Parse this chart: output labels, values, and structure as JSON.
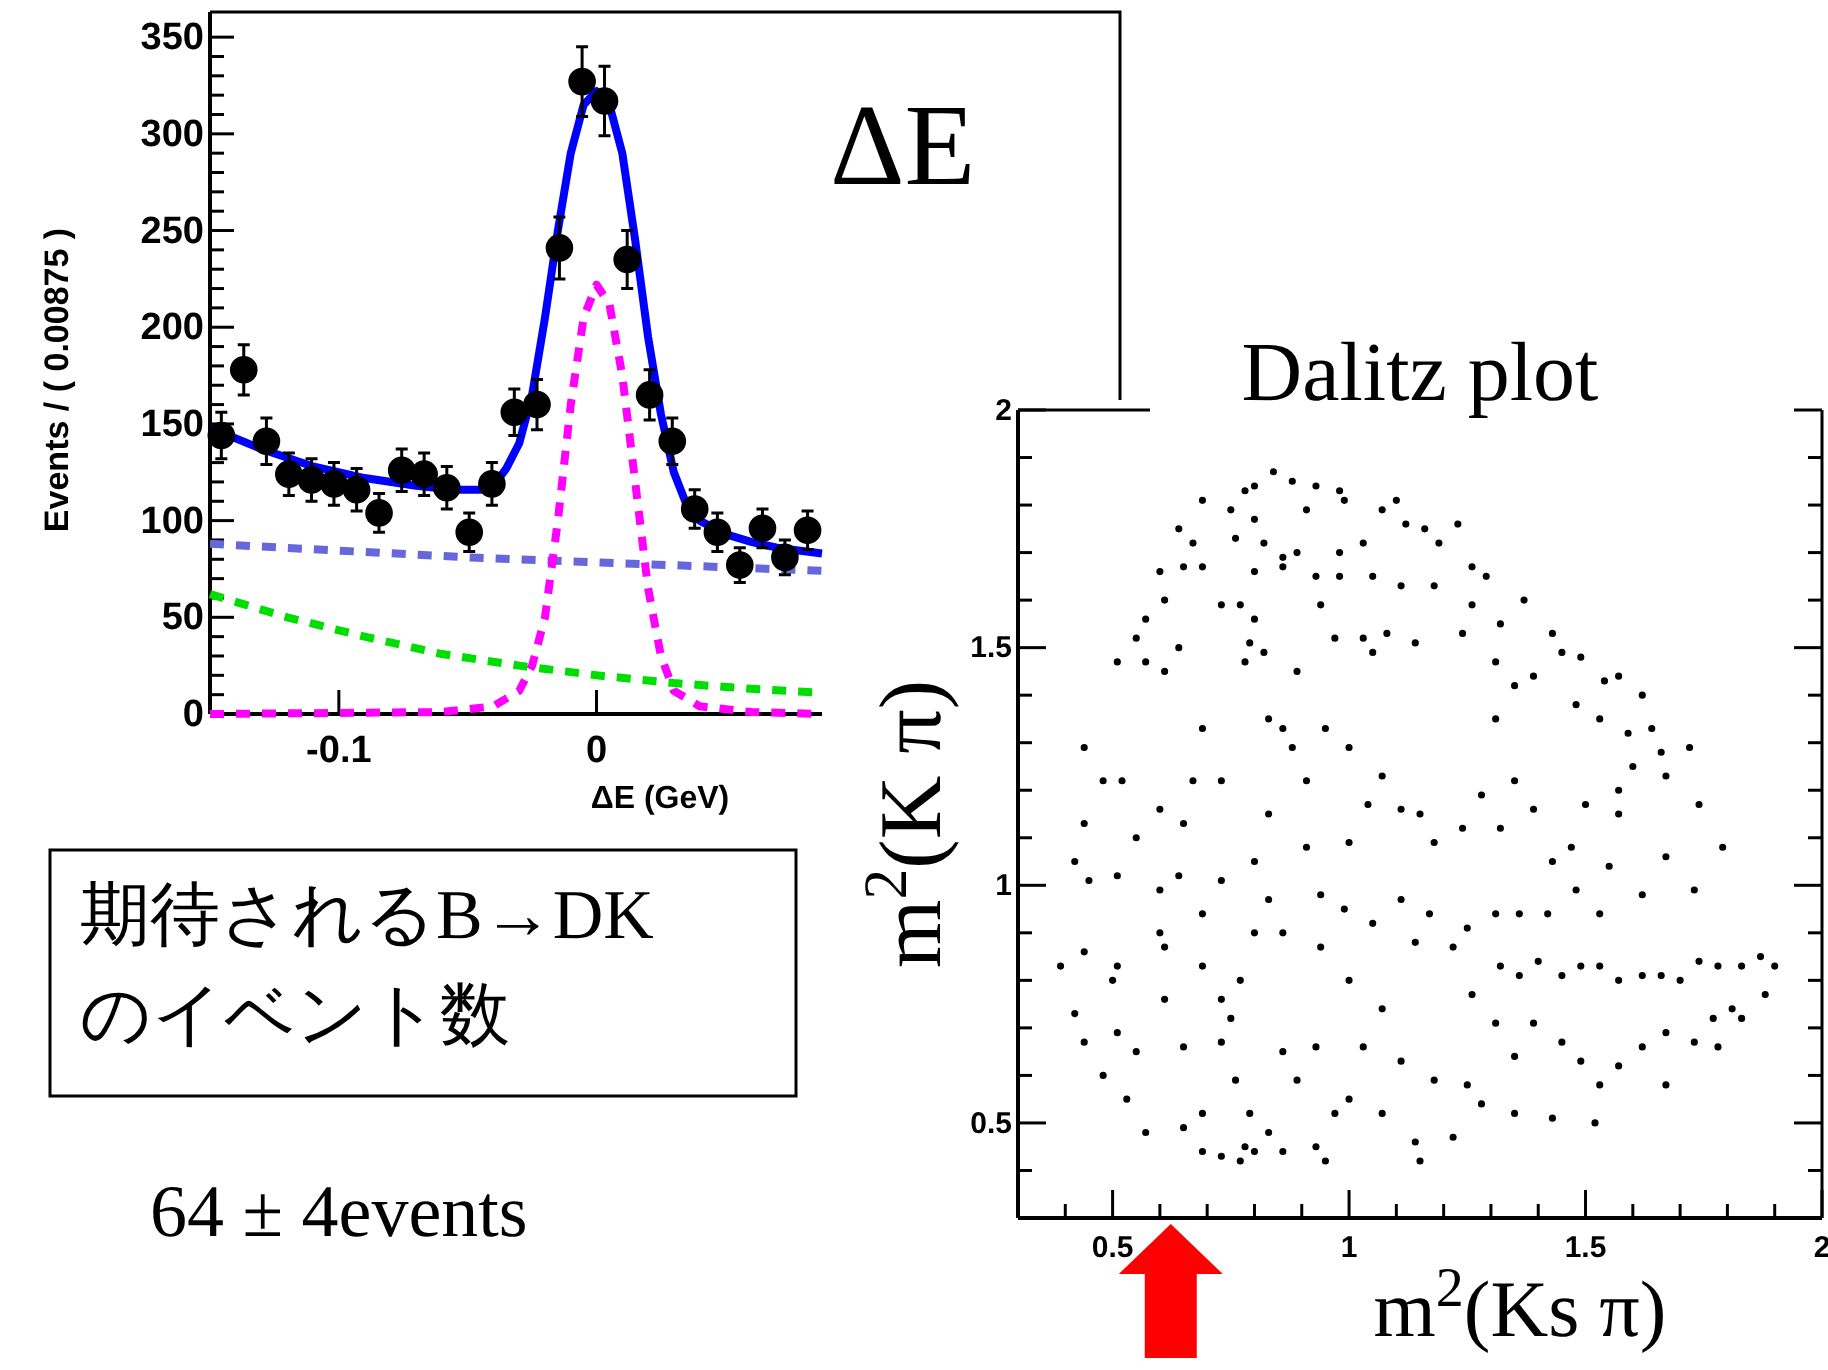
{
  "chart_data": [
    {
      "type": "scatter",
      "xlabel": "ΔE (GeV)",
      "ylabel": "Events / ( 0.00875 )",
      "annotations": [
        "ΔE",
        "期待されるB→DKのイベント数",
        "64 ± 4events"
      ],
      "xlim": [
        -0.15,
        0.0875
      ],
      "xticks": [
        -0.1,
        0
      ],
      "ylim": [
        0,
        363
      ],
      "yticks": [
        0,
        {
          "value": 10,
          "label": null
        },
        {
          "value": 20,
          "label": null
        },
        {
          "value": 30,
          "label": null
        },
        {
          "value": 40,
          "label": null
        },
        50,
        {
          "value": 60,
          "label": null
        },
        {
          "value": 70,
          "label": null
        },
        {
          "value": 80,
          "label": null
        },
        {
          "value": 90,
          "label": null
        },
        100,
        {
          "value": 110,
          "label": null
        },
        {
          "value": 120,
          "label": null
        },
        {
          "value": 130,
          "label": null
        },
        {
          "value": 140,
          "label": null
        },
        150,
        {
          "value": 160,
          "label": null
        },
        {
          "value": 170,
          "label": null
        },
        {
          "value": 180,
          "label": null
        },
        {
          "value": 190,
          "label": null
        },
        200,
        {
          "value": 210,
          "label": null
        },
        {
          "value": 220,
          "label": null
        },
        {
          "value": 230,
          "label": null
        },
        {
          "value": 240,
          "label": null
        },
        250,
        {
          "value": 260,
          "label": null
        },
        {
          "value": 270,
          "label": null
        },
        {
          "value": 280,
          "label": null
        },
        {
          "value": 290,
          "label": null
        },
        300,
        {
          "value": 310,
          "label": null
        },
        {
          "value": 320,
          "label": null
        },
        {
          "value": 330,
          "label": null
        },
        {
          "value": 340,
          "label": null
        },
        350
      ],
      "series": [
        {
          "type": "line",
          "line_style": "dashed",
          "color": "#6666dd",
          "x": [
            -0.15,
            -0.05,
            0.0875
          ],
          "values": [
            88,
            81,
            74
          ]
        },
        {
          "type": "line",
          "line_style": "dashed",
          "color": "#00dd00",
          "x": [
            -0.15,
            -0.12,
            -0.09,
            -0.06,
            -0.03,
            0,
            0.03,
            0.06,
            0.0875
          ],
          "values": [
            62,
            50,
            40,
            31,
            25,
            20,
            16,
            13,
            11
          ]
        },
        {
          "type": "line",
          "line_style": "dashed",
          "color": "#ff00ff",
          "x": [
            -0.15,
            -0.06,
            -0.04,
            -0.03,
            -0.025,
            -0.02,
            -0.015,
            -0.01,
            -0.005,
            0,
            0.005,
            0.01,
            0.015,
            0.02,
            0.025,
            0.03,
            0.04,
            0.06,
            0.0875
          ],
          "values": [
            0,
            1,
            4,
            12,
            25,
            50,
            100,
            160,
            205,
            222,
            212,
            175,
            120,
            65,
            30,
            12,
            4,
            1,
            0
          ]
        },
        {
          "type": "line",
          "line_style": "solid",
          "color": "#0000ff",
          "x": [
            -0.15,
            -0.13,
            -0.11,
            -0.09,
            -0.07,
            -0.055,
            -0.045,
            -0.04,
            -0.035,
            -0.03,
            -0.025,
            -0.02,
            -0.015,
            -0.01,
            -0.005,
            0,
            0.005,
            0.01,
            0.015,
            0.02,
            0.025,
            0.03,
            0.035,
            0.04,
            0.05,
            0.06,
            0.07,
            0.0875
          ],
          "values": [
            148,
            137,
            128,
            122,
            118,
            116,
            116,
            118,
            127,
            140,
            165,
            205,
            250,
            290,
            315,
            322,
            315,
            290,
            245,
            195,
            155,
            125,
            108,
            100,
            93,
            89,
            86,
            83
          ]
        },
        {
          "marker": "circle",
          "color": "#000000",
          "x": [
            -0.1456,
            -0.1369,
            -0.1281,
            -0.1194,
            -0.1106,
            -0.1019,
            -0.0931,
            -0.0844,
            -0.0756,
            -0.0669,
            -0.0581,
            -0.0494,
            -0.0406,
            -0.0319,
            -0.0231,
            -0.0144,
            -0.0056,
            0.0031,
            0.0119,
            0.0206,
            0.0294,
            0.0381,
            0.0469,
            0.0556,
            0.0644,
            0.0731,
            0.0819
          ],
          "values": [
            144,
            178,
            141,
            124,
            121,
            119,
            116,
            104,
            126,
            124,
            117,
            94,
            119,
            156,
            160,
            241,
            327,
            317,
            235,
            165,
            141,
            106,
            94,
            77,
            96,
            81,
            95
          ],
          "errors": [
            12,
            13,
            12,
            11,
            11,
            11,
            11,
            10,
            11,
            11,
            11,
            10,
            11,
            12,
            13,
            16,
            18,
            18,
            15,
            13,
            12,
            10,
            10,
            9,
            10,
            9,
            10
          ]
        }
      ]
    },
    {
      "type": "scatter",
      "title": "Dalitz plot",
      "xlabel": "m$^{2}$(Ks π)",
      "ylabel": "m$^{2}$(K π)",
      "xlim": [
        0.3,
        2
      ],
      "xticks": [
        {
          "value": 0.4,
          "label": null
        },
        0.5,
        {
          "value": 0.6,
          "label": null
        },
        {
          "value": 0.7,
          "label": null
        },
        {
          "value": 0.8,
          "label": null
        },
        {
          "value": 0.9,
          "label": null
        },
        1,
        {
          "value": 1.1,
          "label": null
        },
        {
          "value": 1.2,
          "label": null
        },
        {
          "value": 1.3,
          "label": null
        },
        {
          "value": 1.4,
          "label": null
        },
        1.5,
        {
          "value": 1.6,
          "label": null
        },
        {
          "value": 1.7,
          "label": null
        },
        {
          "value": 1.8,
          "label": null
        },
        {
          "value": 1.9,
          "label": null
        },
        2
      ],
      "ylim": [
        0.3,
        2
      ],
      "yticks": [
        {
          "value": 0.4,
          "label": null
        },
        0.5,
        {
          "value": 0.6,
          "label": null
        },
        {
          "value": 0.7,
          "label": null
        },
        {
          "value": 0.8,
          "label": null
        },
        {
          "value": 0.9,
          "label": null
        },
        1,
        {
          "value": 1.1,
          "label": null
        },
        {
          "value": 1.2,
          "label": null
        },
        {
          "value": 1.3,
          "label": null
        },
        {
          "value": 1.4,
          "label": null
        },
        1.5,
        {
          "value": 1.6,
          "label": null
        },
        {
          "value": 1.7,
          "label": null
        },
        {
          "value": 1.8,
          "label": null
        },
        {
          "value": 1.9,
          "label": null
        },
        2
      ],
      "marker": "circle",
      "series": [
        {
          "color": "#000000",
          "x": [
            0.78,
            0.8,
            0.84,
            0.88,
            0.93,
            0.98,
            0.69,
            0.75,
            0.8,
            0.91,
            0.99,
            1.07,
            1.1,
            1.12,
            1.16,
            1.23,
            0.64,
            0.67,
            0.76,
            0.82,
            0.86,
            0.89,
            0.98,
            1.03,
            1.19,
            1.26,
            1.29,
            1.37,
            0.6,
            0.65,
            0.69,
            0.8,
            0.86,
            0.93,
            0.98,
            1.05,
            1.11,
            1.18,
            1.26,
            0.61,
            0.57,
            0.55,
            0.51,
            0.57,
            0.61,
            0.64,
            0.73,
            0.77,
            0.8,
            0.79,
            0.78,
            0.82,
            0.89,
            0.94,
            0.97,
            1.03,
            1.05,
            1.08,
            1.14,
            1.24,
            1.32,
            1.31,
            1.43,
            1.45,
            1.49,
            1.54,
            1.57,
            1.62,
            1.39,
            1.35,
            1.31,
            1.48,
            1.53,
            1.59,
            1.64,
            1.66,
            1.72,
            1.74,
            1.67,
            1.6,
            1.57,
            0.44,
            0.48,
            0.52,
            0.44,
            0.55,
            0.6,
            0.65,
            0.69,
            0.67,
            0.73,
            0.83,
            0.86,
            0.88,
            0.83,
            0.91,
            0.95,
            1.0,
            1.07,
            1.04,
            1.0,
            1.11,
            1.15,
            1.18,
            1.24,
            1.28,
            1.32,
            1.35,
            1.39,
            1.43,
            1.47,
            1.5,
            1.57,
            1.55,
            1.62,
            1.67,
            1.73,
            1.79,
            0.42,
            0.45,
            0.51,
            0.6,
            0.64,
            0.73,
            0.8,
            0.91,
            0.94,
            0.99,
            1.05,
            1.11,
            1.17,
            1.14,
            1.22,
            1.25,
            1.31,
            1.36,
            1.42,
            1.48,
            1.53,
            1.32,
            1.36,
            1.4,
            1.45,
            1.49,
            1.53,
            1.57,
            1.62,
            1.66,
            1.7,
            1.74,
            1.78,
            1.83,
            1.87,
            1.9,
            1.88,
            1.81,
            1.77,
            1.73,
            1.67,
            1.62,
            1.57,
            1.53,
            1.49,
            1.45,
            1.39,
            1.35,
            1.31,
            1.26,
            1.25,
            1.28,
            1.35,
            1.43,
            1.52,
            1.67,
            1.78,
            1.83,
            0.39,
            0.42,
            0.44,
            0.48,
            0.51,
            0.53,
            0.57,
            0.5,
            0.55,
            0.61,
            0.65,
            0.69,
            0.73,
            0.77,
            0.75,
            0.73,
            0.76,
            0.79,
            0.78,
            0.77,
            0.8,
            0.73,
            0.69,
            0.65,
            0.69,
            0.83,
            0.86,
            0.89,
            0.93,
            0.95,
            0.97,
            1.0,
            0.93,
            0.86,
            1.07,
            1.14,
            1.15,
            1.22,
            1.03,
            1.11,
            1.18,
            1.07,
            1.0,
            0.94,
            0.86,
            0.8,
            0.83,
            0.69,
            0.61,
            0.6,
            0.51,
            0.44
          ],
          "values": [
            1.83,
            1.84,
            1.87,
            1.85,
            1.84,
            1.83,
            1.81,
            1.79,
            1.77,
            1.79,
            1.81,
            1.79,
            1.81,
            1.76,
            1.75,
            1.76,
            1.75,
            1.72,
            1.73,
            1.72,
            1.69,
            1.7,
            1.7,
            1.72,
            1.72,
            1.67,
            1.65,
            1.6,
            1.66,
            1.67,
            1.67,
            1.66,
            1.67,
            1.65,
            1.65,
            1.65,
            1.63,
            1.63,
            1.59,
            1.6,
            1.56,
            1.52,
            1.47,
            1.47,
            1.45,
            1.5,
            1.59,
            1.59,
            1.56,
            1.51,
            1.47,
            1.49,
            1.45,
            1.59,
            1.52,
            1.52,
            1.49,
            1.53,
            1.51,
            1.53,
            1.55,
            1.47,
            1.53,
            1.49,
            1.48,
            1.43,
            1.44,
            1.4,
            1.44,
            1.42,
            1.35,
            1.38,
            1.35,
            1.32,
            1.33,
            1.28,
            1.29,
            1.17,
            1.23,
            1.25,
            1.2,
            1.29,
            1.22,
            1.22,
            1.13,
            1.1,
            1.16,
            1.13,
            1.33,
            1.22,
            1.22,
            1.35,
            1.33,
            1.29,
            1.15,
            1.22,
            1.33,
            1.29,
            1.23,
            1.17,
            1.09,
            1.16,
            1.15,
            1.09,
            1.12,
            1.19,
            1.12,
            1.22,
            1.16,
            1.05,
            1.08,
            1.17,
            1.15,
            1.04,
            0.98,
            1.06,
            0.99,
            1.08,
            1.05,
            1.01,
            1.02,
            0.99,
            1.02,
            1.01,
            1.05,
            1.08,
            0.98,
            0.95,
            0.92,
            0.97,
            0.94,
            0.88,
            0.87,
            0.91,
            0.94,
            0.94,
            0.94,
            0.99,
            0.94,
            0.83,
            0.81,
            0.84,
            0.81,
            0.83,
            0.83,
            0.8,
            0.81,
            0.81,
            0.8,
            0.84,
            0.83,
            0.83,
            0.85,
            0.83,
            0.77,
            0.74,
            0.72,
            0.67,
            0.69,
            0.66,
            0.62,
            0.58,
            0.63,
            0.67,
            0.71,
            0.64,
            0.71,
            0.77,
            0.58,
            0.54,
            0.52,
            0.51,
            0.5,
            0.58,
            0.66,
            0.72,
            0.83,
            0.73,
            0.67,
            0.6,
            0.69,
            0.55,
            0.48,
            0.8,
            0.65,
            0.76,
            0.66,
            0.83,
            0.76,
            0.8,
            0.72,
            0.67,
            0.59,
            0.52,
            0.45,
            0.42,
            0.44,
            0.43,
            0.44,
            0.49,
            0.52,
            0.48,
            0.65,
            0.59,
            0.66,
            0.42,
            0.52,
            0.55,
            0.45,
            0.44,
            0.52,
            0.46,
            0.42,
            0.47,
            0.66,
            0.63,
            0.59,
            0.74,
            0.8,
            0.87,
            0.9,
            0.9,
            0.97,
            0.94,
            0.87,
            0.9,
            0.83,
            0.86
          ]
        }
      ]
    }
  ]
}
